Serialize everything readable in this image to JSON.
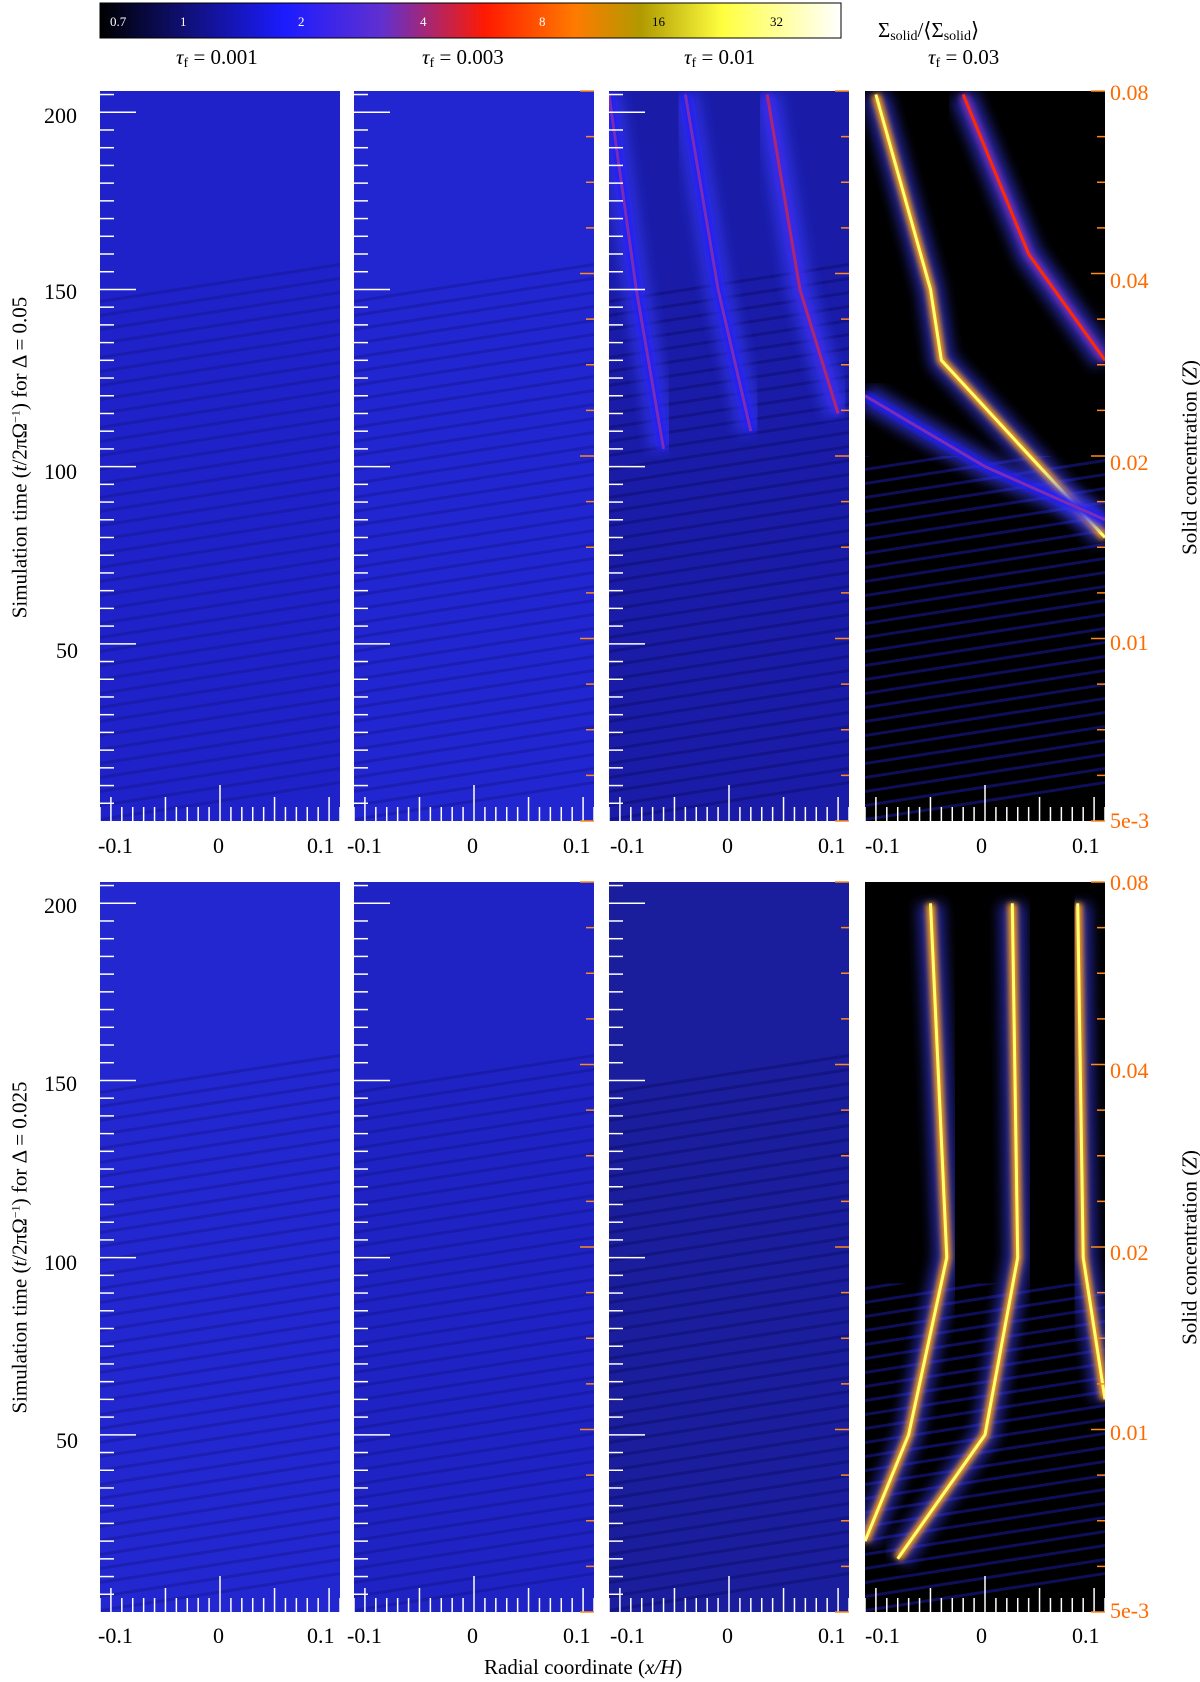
{
  "colorbar": {
    "title_main": "Σ",
    "title_sub1": "solid",
    "title_mid": "/⟨Σ",
    "title_sub2": "solid",
    "title_end": "⟩",
    "ticks": [
      "0.7",
      "1",
      "2",
      "4",
      "8",
      "16",
      "32"
    ],
    "colors": [
      "#000000",
      "#1c1cff",
      "#5a2de0",
      "#ff2a00",
      "#ffa000",
      "#ffff40",
      "#ffffff"
    ]
  },
  "columns": [
    {
      "tau_label": "τ",
      "tau_sub": "f",
      "tau_value": " = 0.001"
    },
    {
      "tau_label": "τ",
      "tau_sub": "f",
      "tau_value": " = 0.003"
    },
    {
      "tau_label": "τ",
      "tau_sub": "f",
      "tau_value": " = 0.01"
    },
    {
      "tau_label": "τ",
      "tau_sub": "f",
      "tau_value": " = 0.03"
    }
  ],
  "rows": [
    {
      "ylabel_a": "Simulation time (",
      "ylabel_t": "t",
      "ylabel_b": "/2πΩ",
      "ylabel_sup": "−1",
      "ylabel_c": ") for Δ = 0.05"
    },
    {
      "ylabel_a": "Simulation time (",
      "ylabel_t": "t",
      "ylabel_b": "/2πΩ",
      "ylabel_sup": "−1",
      "ylabel_c": ") for Δ = 0.025"
    }
  ],
  "xlabel_a": "Radial coordinate (",
  "xlabel_var": "x/H",
  "xlabel_b": ")",
  "zlabel_a": "Solid concentration (",
  "zlabel_var": "Z",
  "zlabel_b": ")",
  "chart_data": {
    "type": "heatmap",
    "panels": "2 rows × 4 columns of space–time heatmaps",
    "x_ticks": [
      "-0.1",
      "0",
      "0.1"
    ],
    "xlim": [
      -0.11,
      0.11
    ],
    "y_ticks": [
      "50",
      "100",
      "150",
      "200"
    ],
    "ylim": [
      0,
      206
    ],
    "z_ticks": [
      "5e-3",
      "0.01",
      "0.02",
      "0.04",
      "0.08"
    ],
    "z_scale": "log",
    "colorbar_scale": "log",
    "colorbar_range": [
      0.6,
      55
    ],
    "filament_tracks": [
      {
        "row": 0,
        "col": 2,
        "x": [
          -0.11,
          -0.085,
          -0.06
        ],
        "t": [
          205,
          150,
          105
        ],
        "peak": 4
      },
      {
        "row": 0,
        "col": 2,
        "x": [
          -0.04,
          -0.01,
          0.02
        ],
        "t": [
          205,
          150,
          110
        ],
        "peak": 4
      },
      {
        "row": 0,
        "col": 2,
        "x": [
          0.035,
          0.065,
          0.1
        ],
        "t": [
          205,
          150,
          115
        ],
        "peak": 5
      },
      {
        "row": 0,
        "col": 3,
        "x": [
          -0.1,
          -0.05,
          -0.04,
          0.11
        ],
        "t": [
          205,
          150,
          130,
          80
        ],
        "peak": 32
      },
      {
        "row": 0,
        "col": 3,
        "x": [
          -0.02,
          0.04,
          0.11
        ],
        "t": [
          205,
          160,
          130
        ],
        "peak": 8
      },
      {
        "row": 0,
        "col": 3,
        "x": [
          -0.11,
          0.0,
          0.11
        ],
        "t": [
          120,
          100,
          85
        ],
        "peak": 4
      },
      {
        "row": 1,
        "col": 3,
        "x": [
          -0.05,
          -0.035,
          -0.07,
          -0.11
        ],
        "t": [
          200,
          100,
          50,
          20
        ],
        "peak": 32
      },
      {
        "row": 1,
        "col": 3,
        "x": [
          0.025,
          0.03,
          0.0,
          -0.08
        ],
        "t": [
          200,
          100,
          50,
          15
        ],
        "peak": 32
      },
      {
        "row": 1,
        "col": 3,
        "x": [
          0.085,
          0.09,
          0.11
        ],
        "t": [
          200,
          100,
          60
        ],
        "peak": 32
      }
    ]
  }
}
